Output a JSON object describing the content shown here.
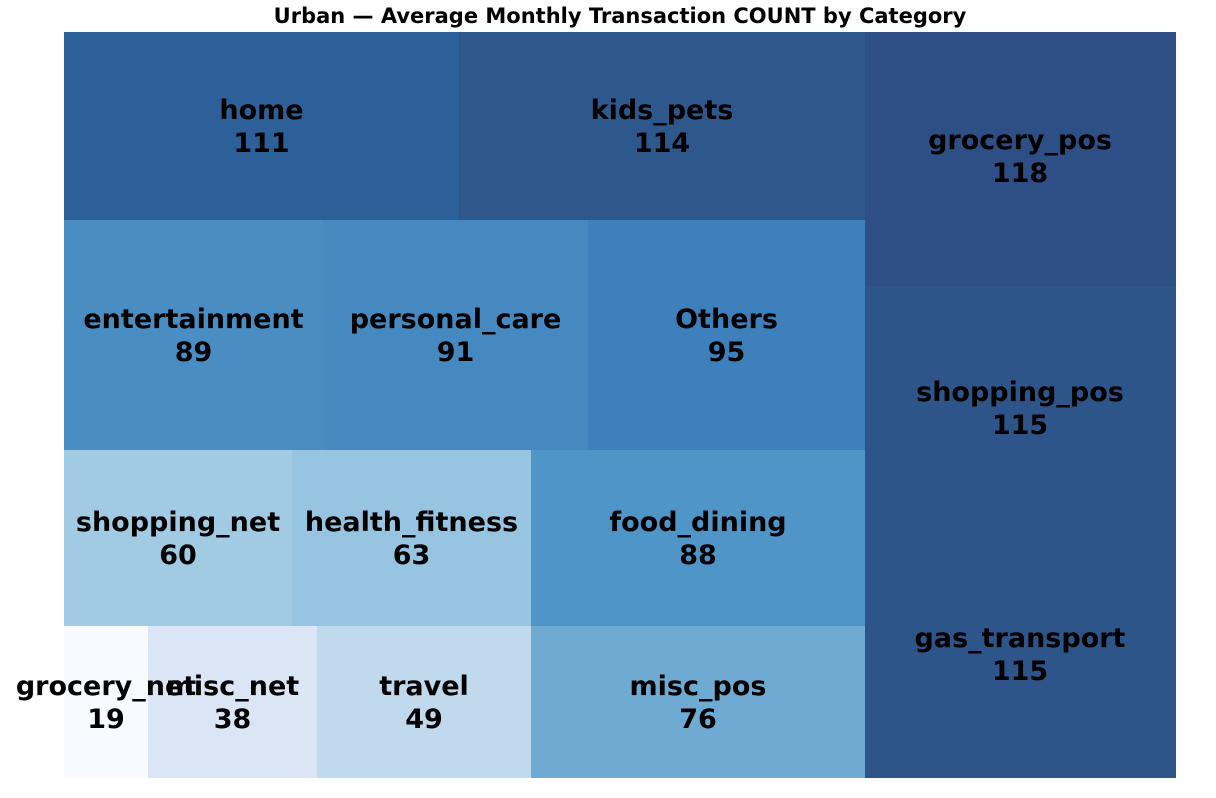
{
  "chart_data": {
    "type": "treemap",
    "title": "Urban — Average Monthly Transaction COUNT by Category",
    "items": [
      {
        "label": "home",
        "value": 111,
        "color": "#2d5f98"
      },
      {
        "label": "kids_pets",
        "value": 114,
        "color": "#2e588c"
      },
      {
        "label": "grocery_pos",
        "value": 118,
        "color": "#2e4f85"
      },
      {
        "label": "entertainment",
        "value": 89,
        "color": "#4a8dc3"
      },
      {
        "label": "personal_care",
        "value": 91,
        "color": "#4689c1"
      },
      {
        "label": "Others",
        "value": 95,
        "color": "#3e80bc"
      },
      {
        "label": "shopping_pos",
        "value": 115,
        "color": "#2e5589"
      },
      {
        "label": "shopping_net",
        "value": 60,
        "color": "#a0cbe3"
      },
      {
        "label": "health_fitness",
        "value": 63,
        "color": "#97c4e0"
      },
      {
        "label": "food_dining",
        "value": 88,
        "color": "#5095c8"
      },
      {
        "label": "gas_transport",
        "value": 115,
        "color": "#2e5589"
      },
      {
        "label": "grocery_net",
        "value": 19,
        "color": "#f7fbff"
      },
      {
        "label": "misc_net",
        "value": 38,
        "color": "#dae6f5"
      },
      {
        "label": "travel",
        "value": 49,
        "color": "#c0d9ec"
      },
      {
        "label": "misc_pos",
        "value": 76,
        "color": "#6eaad2"
      }
    ]
  }
}
